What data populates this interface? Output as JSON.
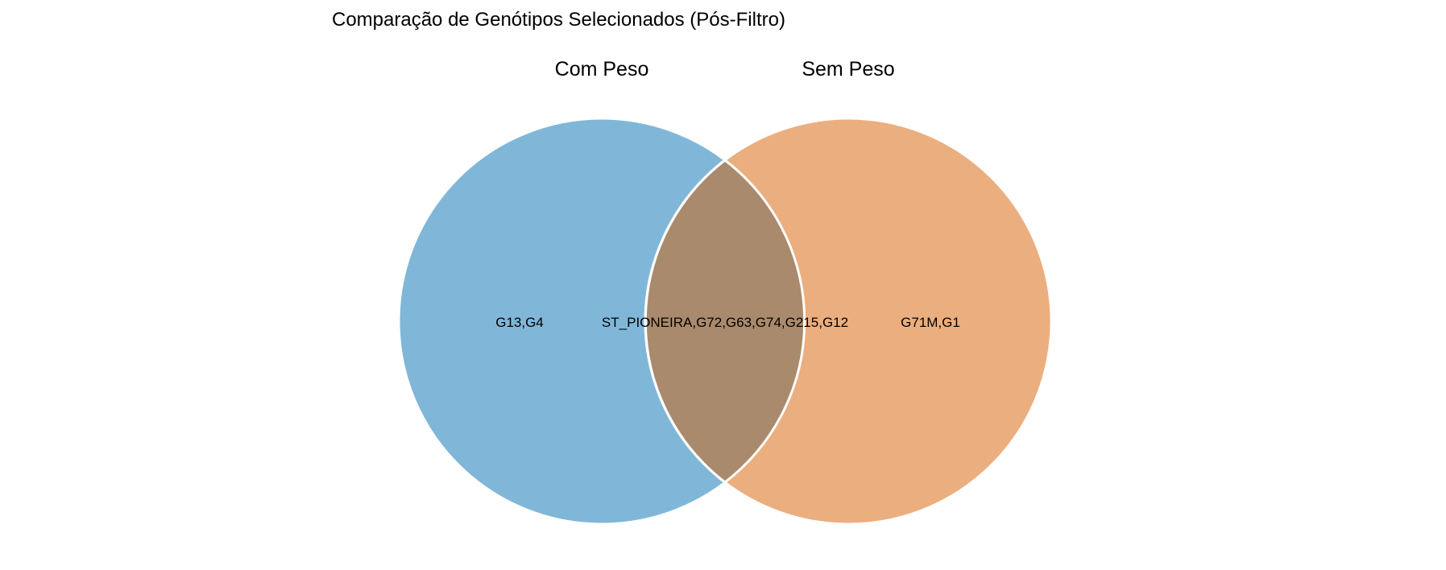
{
  "title": "Comparação de Genótipos Selecionados (Pós-Filtro)",
  "colors": {
    "set_a": "#80b7d8",
    "set_b": "#ebae7e",
    "intersection": "#a98a6c",
    "border": "#ffffff",
    "text": "#000000"
  },
  "sets": [
    {
      "name": "Com Peso"
    },
    {
      "name": "Sem Peso"
    }
  ],
  "regions": {
    "only_a": "G13,G4",
    "both": "ST_PIONEIRA,G72,G63,G74,G215,G12",
    "only_b": "G71M,G1"
  }
}
